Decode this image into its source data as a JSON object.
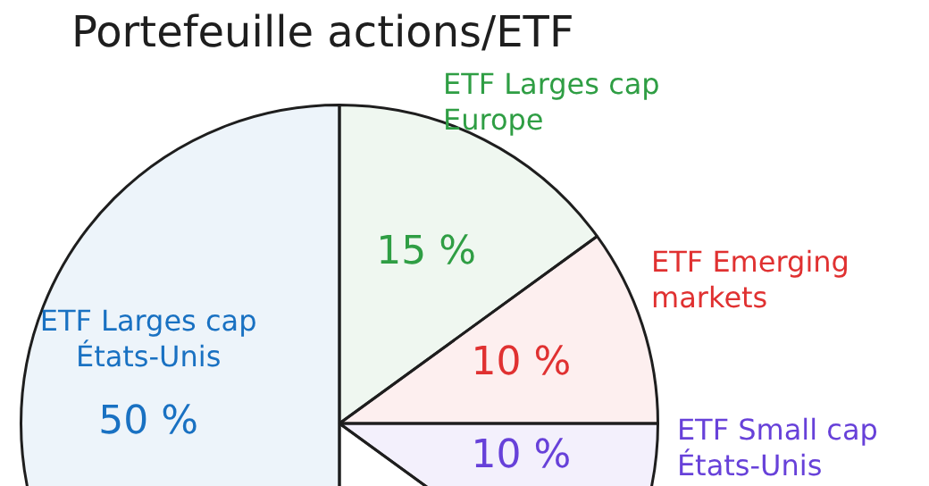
{
  "chart_data": {
    "type": "pie",
    "title": "Portefeuille actions/ETF",
    "categories": [
      "ETF Larges cap Europe",
      "ETF Emerging markets",
      "ETF Small cap États-Unis",
      null,
      "ETF Larges cap États-Unis"
    ],
    "values": [
      15,
      10,
      10,
      15,
      50
    ],
    "colors": [
      "#2f9e44",
      "#e03131",
      "#6741d9",
      "#ffffff",
      "#1971c2"
    ],
    "value_labels": [
      "15 %",
      "10 %",
      "10 %",
      null,
      "50 %"
    ],
    "legend": false
  }
}
